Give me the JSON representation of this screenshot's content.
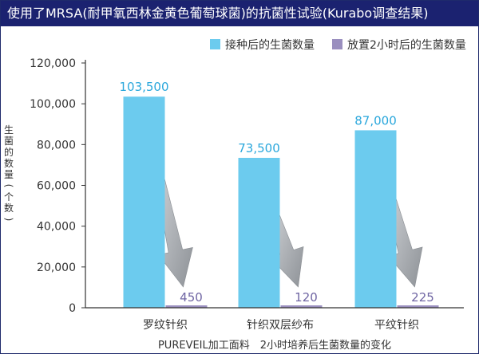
{
  "title": "使用了MRSA(耐甲氧西林金黄色葡萄球菌)的抗菌性试验(Kurabo调查结果)",
  "chart_data": {
    "type": "bar",
    "title": "使用了MRSA(耐甲氧西林金黄色葡萄球菌)的抗菌性试验(Kurabo调查结果)",
    "xlabel": "PUREVEIL加工面料　2小时培养后生菌数量的变化",
    "ylabel": "生菌的数量(个数)",
    "ylim": [
      0,
      120000
    ],
    "yticks": [
      "0",
      "20,000",
      "40,000",
      "60,000",
      "80,000",
      "100,000",
      "120,000"
    ],
    "ytick_values": [
      0,
      20000,
      40000,
      60000,
      80000,
      100000,
      120000
    ],
    "categories": [
      "罗纹针织",
      "针织双层纱布",
      "平纹针织"
    ],
    "series": [
      {
        "name": "接种后的生菌数量",
        "color": "#6ccbee",
        "values": [
          103500,
          73500,
          87000
        ],
        "labels": [
          "103,500",
          "73,500",
          "87,000"
        ]
      },
      {
        "name": "放置2小时后的生菌数量",
        "color": "#9a8fbf",
        "values": [
          450,
          120,
          225
        ],
        "labels": [
          "450",
          "120",
          "225"
        ]
      }
    ],
    "legend_position": "top-right",
    "grid": false
  },
  "colors": {
    "title_bg": "#1b2270",
    "axis": "#333333",
    "arrow": "#9aa0a6",
    "label_blue": "#2aa7dc",
    "label_purple": "#6f65a3"
  }
}
